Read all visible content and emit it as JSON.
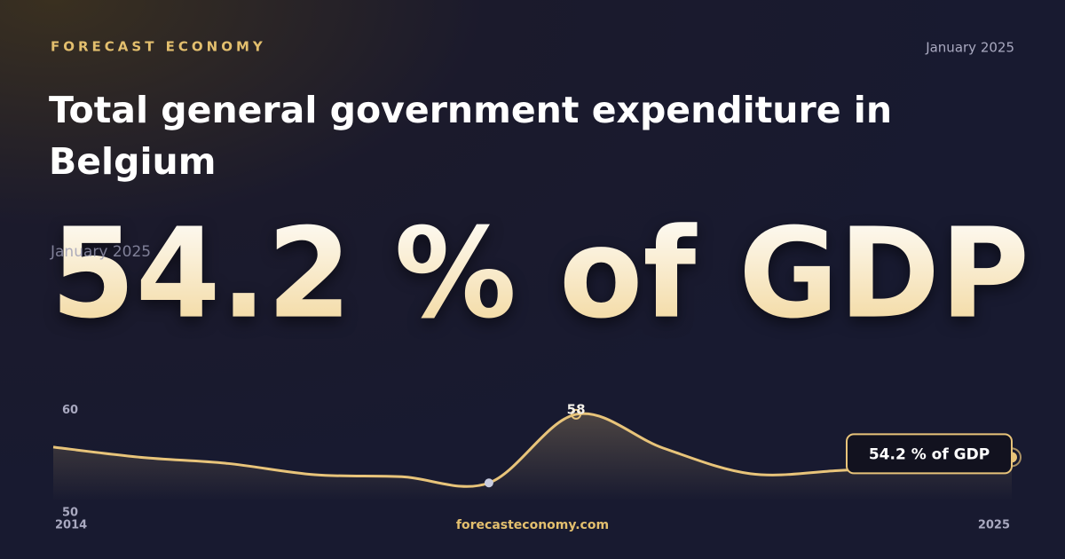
{
  "brand": "FORECAST ECONOMY",
  "date": "January 2025",
  "headline_value": "54.2 % of GDP",
  "footer": "forecasteconomy.com",
  "chart_data": {
    "type": "line",
    "title": "Total general government expenditure in Belgium",
    "x": [
      2014,
      2015,
      2016,
      2017,
      2018,
      2019,
      2020,
      2021,
      2022,
      2023,
      2024,
      2025
    ],
    "series": [
      {
        "name": "Total general government expenditure",
        "color": "#e8c47a",
        "values": [
          55.2,
          54.2,
          53.6,
          52.5,
          52.3,
          51.7,
          58.4,
          55.1,
          52.6,
          52.9,
          53.5,
          54.2
        ],
        "value_labels": [
          null,
          null,
          null,
          null,
          null,
          null,
          "58",
          null,
          null,
          null,
          null,
          "54.2 % of GDP"
        ]
      }
    ],
    "xlim": [
      2014,
      2025
    ],
    "xticks": [
      2014,
      2025
    ],
    "ylim": [
      49.9,
      61.6
    ],
    "yticks": [
      50,
      60
    ]
  }
}
